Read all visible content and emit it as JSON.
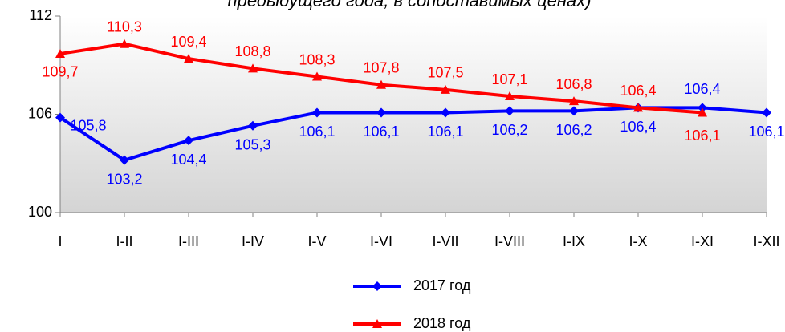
{
  "chart_data": {
    "type": "line",
    "title": "предыдущего года, в сопоставимых ценах)",
    "categories": [
      "I",
      "I-II",
      "I-III",
      "I-IV",
      "I-V",
      "I-VI",
      "I-VII",
      "I-VIII",
      "I-IX",
      "I-X",
      "I-XI",
      "I-XII"
    ],
    "series": [
      {
        "name": "2017 год",
        "color": "#0000ff",
        "marker": "diamond",
        "values": [
          105.8,
          103.2,
          104.4,
          105.3,
          106.1,
          106.1,
          106.1,
          106.2,
          106.2,
          106.4,
          106.4,
          106.1
        ],
        "value_labels": [
          "105,8",
          "103,2",
          "104,4",
          "105,3",
          "106,1",
          "106,1",
          "106,1",
          "106,2",
          "106,2",
          "106,4",
          "106,4",
          "106,1"
        ]
      },
      {
        "name": "2018 год",
        "color": "#ff0000",
        "marker": "triangle",
        "values": [
          109.7,
          110.3,
          109.4,
          108.8,
          108.3,
          107.8,
          107.5,
          107.1,
          106.8,
          106.4,
          106.1,
          null
        ],
        "value_labels": [
          "109,7",
          "110,3",
          "109,4",
          "108,8",
          "108,3",
          "107,8",
          "107,5",
          "107,1",
          "106,8",
          "106,4",
          "106,1",
          null
        ]
      }
    ],
    "ylim": [
      100,
      112
    ],
    "yticks": [
      100,
      106,
      112
    ],
    "legend": "bottom"
  }
}
